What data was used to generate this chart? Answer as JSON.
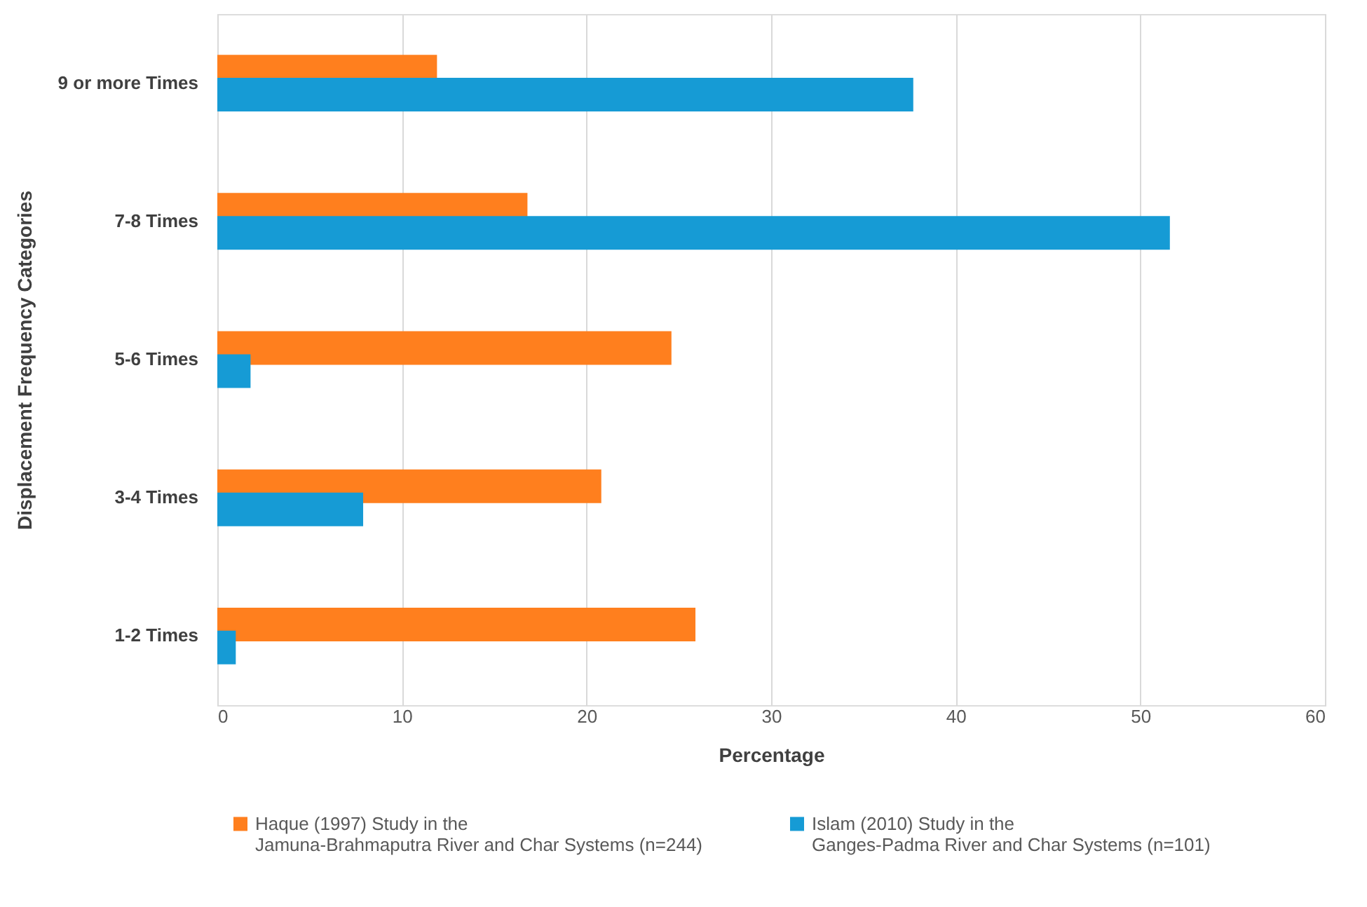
{
  "chart_data": {
    "type": "bar",
    "orientation": "horizontal",
    "xlabel": "Percentage",
    "ylabel": "Displacement Frequency Categories",
    "categories": [
      "9 or more Times",
      "7-8 Times",
      "5-6 Times",
      "3-4 Times",
      "1-2 Times"
    ],
    "series": [
      {
        "name": "Haque (1997) Study in the\nJamuna-Brahmaputra River and Char Systems (n=244)",
        "color": "#ff7f1e",
        "values": [
          11.9,
          16.8,
          24.6,
          20.8,
          25.9
        ]
      },
      {
        "name": "Islam (2010) Study in the\nGanges-Padma River and Char Systems (n=101)",
        "color": "#169bd5",
        "values": [
          37.7,
          51.6,
          1.8,
          7.9,
          1.0
        ]
      }
    ],
    "xlim": [
      0,
      60
    ],
    "xticks": [
      0,
      10,
      20,
      30,
      40,
      50,
      60
    ],
    "grid": "x",
    "legend": "bottom"
  }
}
